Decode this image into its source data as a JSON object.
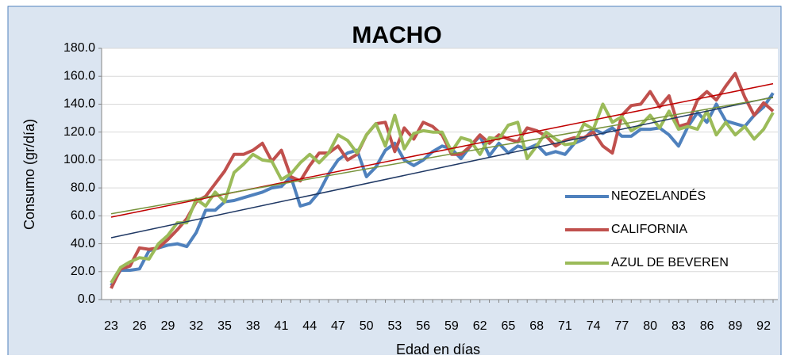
{
  "chart_data": {
    "type": "line",
    "title": "MACHO",
    "x_label": "Edad en días",
    "y_label": "Consumo (gr/día)",
    "categories": [
      23,
      null,
      null,
      26,
      null,
      null,
      29,
      null,
      null,
      32,
      null,
      null,
      35,
      null,
      null,
      38,
      null,
      null,
      41,
      null,
      null,
      44,
      null,
      null,
      47,
      null,
      null,
      50,
      null,
      null,
      53,
      null,
      null,
      56,
      null,
      null,
      59,
      null,
      null,
      62,
      null,
      null,
      65,
      null,
      null,
      68,
      null,
      null,
      71,
      null,
      null,
      74,
      null,
      null,
      77,
      null,
      null,
      80,
      null,
      null,
      83,
      null,
      null,
      86,
      null,
      null,
      89,
      null,
      null,
      92,
      null
    ],
    "series": [
      {
        "name": "NEOZELANDÉS",
        "color": "#4f81bd",
        "trend_color": "#1f3864",
        "values": [
          10,
          21,
          21,
          22,
          35,
          37,
          39,
          40,
          38,
          48,
          64,
          64,
          70,
          71,
          73,
          75,
          77,
          80,
          81,
          88,
          67,
          69,
          77,
          90,
          100,
          105,
          107,
          88,
          95,
          107,
          112,
          100,
          96,
          100,
          106,
          110,
          108,
          101,
          110,
          117,
          103,
          112,
          105,
          110,
          108,
          111,
          104,
          106,
          104,
          112,
          115,
          122,
          119,
          123,
          117,
          117,
          122,
          122,
          123,
          118,
          110,
          124,
          134,
          127,
          140,
          128,
          126,
          124,
          132,
          138,
          148
        ]
      },
      {
        "name": "CALIFORNIA",
        "color": "#c0504d",
        "trend_color": "#c00000",
        "values": [
          8,
          22,
          24,
          37,
          36,
          37,
          43,
          50,
          58,
          70,
          74,
          83,
          92,
          104,
          104,
          107,
          112,
          99,
          107,
          88,
          85,
          96,
          105,
          105,
          110,
          100,
          104,
          118,
          126,
          127,
          106,
          123,
          115,
          127,
          124,
          118,
          104,
          104,
          110,
          118,
          112,
          118,
          115,
          113,
          123,
          121,
          117,
          110,
          114,
          116,
          116,
          120,
          110,
          105,
          132,
          139,
          140,
          149,
          138,
          146,
          124,
          126,
          143,
          149,
          143,
          153,
          162,
          145,
          132,
          141,
          135
        ]
      },
      {
        "name": "AZUL DE BEVEREN",
        "color": "#9bbb59",
        "trend_color": "#77933c",
        "values": [
          12,
          23,
          27,
          30,
          29,
          40,
          46,
          55,
          55,
          72,
          67,
          77,
          70,
          91,
          97,
          104,
          100,
          99,
          86,
          90,
          98,
          104,
          98,
          105,
          118,
          114,
          105,
          118,
          126,
          110,
          132,
          108,
          119,
          121,
          120,
          120,
          106,
          116,
          114,
          104,
          116,
          115,
          125,
          127,
          101,
          110,
          120,
          115,
          111,
          112,
          126,
          122,
          140,
          127,
          131,
          121,
          125,
          132,
          123,
          135,
          122,
          124,
          122,
          135,
          118,
          127,
          118,
          124,
          115,
          122,
          134
        ]
      }
    ],
    "ylim": [
      0,
      180
    ],
    "yticks": [
      {
        "value": 0,
        "label": "0.0"
      },
      {
        "value": 20,
        "label": "20.0"
      },
      {
        "value": 40,
        "label": "40.0"
      },
      {
        "value": 60,
        "label": "60.0"
      },
      {
        "value": 80,
        "label": "80.0"
      },
      {
        "value": 100,
        "label": "100.0"
      },
      {
        "value": 120,
        "label": "120.0"
      },
      {
        "value": 140,
        "label": "140.0"
      },
      {
        "value": 160,
        "label": "160.0"
      },
      {
        "value": 180,
        "label": "180.0"
      }
    ],
    "grid": true,
    "trendline": true,
    "legend": "right"
  }
}
